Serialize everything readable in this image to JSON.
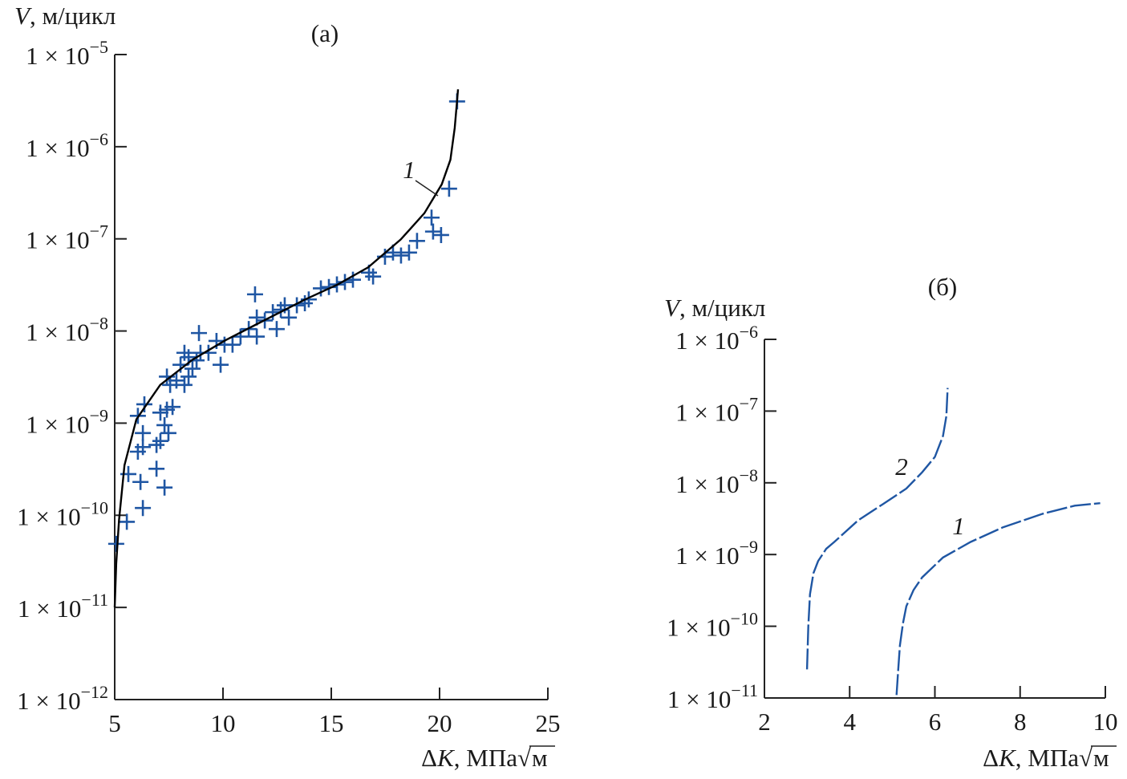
{
  "chart_data": [
    {
      "type": "scatter",
      "panel_label": "(а)",
      "ylabel": {
        "var": "V",
        "unit": ", м/цикл"
      },
      "xlabel": {
        "var": "ΔK",
        "unit": ", МПа",
        "root": "м"
      },
      "xlim": [
        5,
        25
      ],
      "xticks": [
        5,
        10,
        15,
        20,
        25
      ],
      "ylim": [
        1e-12,
        1e-05
      ],
      "yscale": "log",
      "ytick_exponents": [
        -5,
        -6,
        -7,
        -8,
        -9,
        -10,
        -11,
        -12
      ],
      "grid": false,
      "colors": {
        "points": "#1f56a3",
        "curve": "#000000"
      },
      "points": {
        "marker": "plus",
        "x": [
          5.07,
          5.56,
          6.3,
          5.63,
          6.19,
          7.3,
          6.07,
          6.3,
          6.93,
          6.3,
          6.37,
          6.07,
          6.93,
          7.11,
          7.3,
          7.48,
          7.11,
          7.41,
          7.67,
          7.56,
          7.41,
          7.85,
          8.22,
          8.41,
          8.59,
          8.04,
          8.78,
          8.96,
          8.22,
          8.41,
          8.89,
          9.33,
          9.7,
          10.07,
          9.89,
          10.44,
          10.81,
          11.19,
          11.48,
          11.56,
          11.93,
          11.56,
          12.48,
          12.67,
          12.85,
          12.3,
          13.41,
          13.78,
          13.04,
          13.96,
          14.52,
          14.89,
          15.26,
          15.63,
          16.0,
          16.74,
          16.93,
          17.48,
          17.85,
          18.22,
          18.59,
          18.96,
          19.7,
          20.07,
          19.63,
          20.44,
          20.81
        ],
        "y": [
          4.9e-11,
          8.5e-11,
          1.2e-10,
          2.8e-10,
          2.3e-10,
          2e-10,
          4.9e-10,
          5.5e-10,
          3.2e-10,
          7.8e-10,
          1.6e-09,
          1.2e-09,
          5.8e-10,
          6.4e-10,
          9.5e-10,
          7.8e-10,
          1.3e-09,
          1.4e-09,
          1.5e-09,
          2.6e-09,
          3.2e-09,
          2.9e-09,
          2.6e-09,
          3.2e-09,
          3.9e-09,
          4.3e-09,
          4.8e-09,
          5.8e-09,
          5.8e-09,
          5.2e-09,
          9.5e-09,
          5.8e-09,
          7.8e-09,
          7.1e-09,
          4.3e-09,
          7.1e-09,
          8.7e-09,
          1.05e-08,
          2.5e-08,
          1.4e-08,
          1.3e-08,
          8.7e-09,
          1.05e-08,
          1.7e-08,
          1.9e-08,
          1.6e-08,
          1.9e-08,
          2e-08,
          1.4e-08,
          2.2e-08,
          2.9e-08,
          3e-08,
          3.2e-08,
          3.4e-08,
          3.6e-08,
          4.3e-08,
          3.9e-08,
          6.4e-08,
          7.1e-08,
          6.6e-08,
          7.1e-08,
          9.5e-08,
          1.2e-07,
          1.1e-07,
          1.7e-07,
          3.5e-07,
          3.1e-06
        ]
      },
      "series": [
        {
          "name": "1",
          "style": "solid",
          "x": [
            5.0,
            5.07,
            5.2,
            5.45,
            6.0,
            7.1,
            8.6,
            10.1,
            11.6,
            13.8,
            15.3,
            16.7,
            18.2,
            19.3,
            20.1,
            20.5,
            20.7,
            20.8,
            20.85
          ],
          "y": [
            1e-11,
            3e-11,
            8.9e-11,
            3.5e-10,
            1.1e-09,
            2.6e-09,
            4.9e-09,
            7.9e-09,
            1.2e-08,
            2.2e-08,
            3.2e-08,
            4.9e-08,
            9.8e-08,
            1.9e-07,
            3.9e-07,
            7.2e-07,
            1.6e-06,
            3e-06,
            4.2e-06
          ]
        }
      ]
    },
    {
      "type": "line",
      "panel_label": "(б)",
      "ylabel": {
        "var": "V",
        "unit": ", м/цикл"
      },
      "xlabel": {
        "var": "ΔK",
        "unit": ", МПа",
        "root": "м"
      },
      "xlim": [
        2,
        10
      ],
      "xticks": [
        2,
        4,
        6,
        8,
        10
      ],
      "ylim": [
        1e-11,
        1e-06
      ],
      "yscale": "log",
      "ytick_exponents": [
        -6,
        -7,
        -8,
        -9,
        -10,
        -11
      ],
      "grid": false,
      "colors": {
        "curve": "#1f56a3"
      },
      "series": [
        {
          "name": "2",
          "style": "dashed",
          "x": [
            3.0,
            3.03,
            3.07,
            3.15,
            3.26,
            3.45,
            3.64,
            4.2,
            4.77,
            5.33,
            5.7,
            6.0,
            6.19,
            6.27,
            6.3
          ],
          "y": [
            2.5e-11,
            1e-10,
            2.8e-10,
            5.5e-10,
            8.1e-10,
            1.2e-09,
            1.5e-09,
            3e-09,
            5e-09,
            8.3e-09,
            1.4e-08,
            2.3e-08,
            4.5e-08,
            8.5e-08,
            2.1e-07
          ]
        },
        {
          "name": "1",
          "style": "dashed",
          "x": [
            5.1,
            5.14,
            5.18,
            5.25,
            5.33,
            5.5,
            5.7,
            6.19,
            6.84,
            7.6,
            8.53,
            9.28,
            9.88
          ],
          "y": [
            1.1e-11,
            2.5e-11,
            5.4e-11,
            1.1e-10,
            1.9e-10,
            3.2e-10,
            4.8e-10,
            9.1e-10,
            1.5e-09,
            2.4e-09,
            3.7e-09,
            4.8e-09,
            5.2e-09
          ]
        }
      ]
    }
  ]
}
